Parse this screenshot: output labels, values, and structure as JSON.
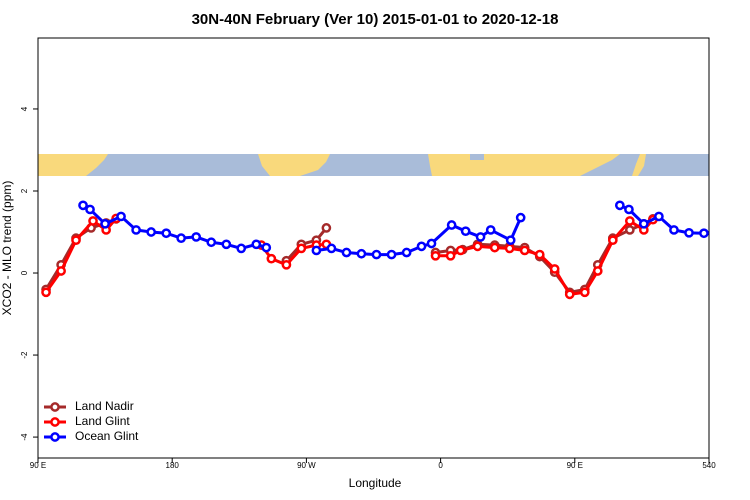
{
  "chart_data": {
    "type": "line",
    "title": "30N-40N February (Ver 10)   2015-01-01 to 2020-12-18",
    "xlabel": "Longitude",
    "ylabel": "XCO2 - MLO trend (ppm)",
    "xlim": [
      90,
      540
    ],
    "ylim": [
      -4.51,
      5.73
    ],
    "xticks": [
      {
        "value": 90,
        "label": "90 E"
      },
      180,
      {
        "value": 270,
        "label": "90 W"
      },
      {
        "value": 360,
        "label": "0"
      },
      {
        "value": 450,
        "label": "90 E"
      },
      540
    ],
    "yticks": [
      -4,
      -2,
      0,
      2,
      4
    ],
    "legend": "bottom-left",
    "series": [
      {
        "name": "Land Nadir",
        "color": "#a52a2a",
        "x": [
          95.4,
          105.5,
          115.5,
          125.6,
          135.7,
          142.4,
          null,
          256.6,
          266.6,
          276.7,
          283.4,
          null,
          356.6,
          366.7,
          374.8,
          384.8,
          396.3,
          406.3,
          416.4,
          426.5,
          436.5,
          446.6,
          456.7,
          465.4,
          475.5,
          486.9,
          496.3,
          502.4
        ],
        "values": [
          -0.4,
          0.2,
          0.85,
          1.1,
          1.22,
          1.32,
          null,
          0.3,
          0.7,
          0.8,
          1.1,
          null,
          0.5,
          0.55,
          0.57,
          0.7,
          0.68,
          0.65,
          0.62,
          0.4,
          0.02,
          -0.47,
          -0.4,
          0.2,
          0.85,
          1.05,
          1.2,
          1.32
        ]
      },
      {
        "name": "Land Glint",
        "color": "#ff0000",
        "x": [
          95.4,
          105.5,
          115.5,
          126.9,
          135.7,
          142.4,
          null,
          239.8,
          246.5,
          256.6,
          266.6,
          276.7,
          283.4,
          null,
          356.6,
          366.7,
          373.4,
          384.8,
          396.3,
          406.3,
          416.4,
          426.5,
          436.5,
          446.6,
          456.7,
          465.4,
          475.5,
          486.9,
          496.3,
          502.4
        ],
        "values": [
          -0.47,
          0.05,
          0.8,
          1.27,
          1.05,
          1.33,
          null,
          0.68,
          0.35,
          0.2,
          0.6,
          0.68,
          0.7,
          null,
          0.42,
          0.42,
          0.55,
          0.65,
          0.62,
          0.6,
          0.55,
          0.45,
          0.1,
          -0.52,
          -0.47,
          0.05,
          0.8,
          1.27,
          1.05,
          1.3
        ]
      },
      {
        "name": "Ocean Glint",
        "color": "#0000ff",
        "x": [
          120.2,
          124.9,
          135.0,
          145.7,
          155.8,
          165.9,
          176.0,
          186.0,
          196.1,
          206.2,
          216.3,
          226.3,
          236.4,
          243.1,
          null,
          276.7,
          286.8,
          296.9,
          306.9,
          317.0,
          327.1,
          337.2,
          347.2,
          353.9,
          367.4,
          376.8,
          386.8,
          393.6,
          407.0,
          413.7,
          null,
          480.2,
          486.3,
          496.3,
          506.4,
          516.5,
          526.6,
          536.6
        ],
        "values": [
          1.65,
          1.55,
          1.2,
          1.38,
          1.05,
          1.0,
          0.97,
          0.85,
          0.88,
          0.75,
          0.7,
          0.6,
          0.7,
          0.62,
          null,
          0.55,
          0.6,
          0.5,
          0.47,
          0.45,
          0.45,
          0.5,
          0.65,
          0.72,
          1.17,
          1.02,
          0.88,
          1.05,
          0.8,
          1.35,
          null,
          1.65,
          1.55,
          1.2,
          1.38,
          1.05,
          0.98,
          0.97
        ]
      }
    ]
  }
}
